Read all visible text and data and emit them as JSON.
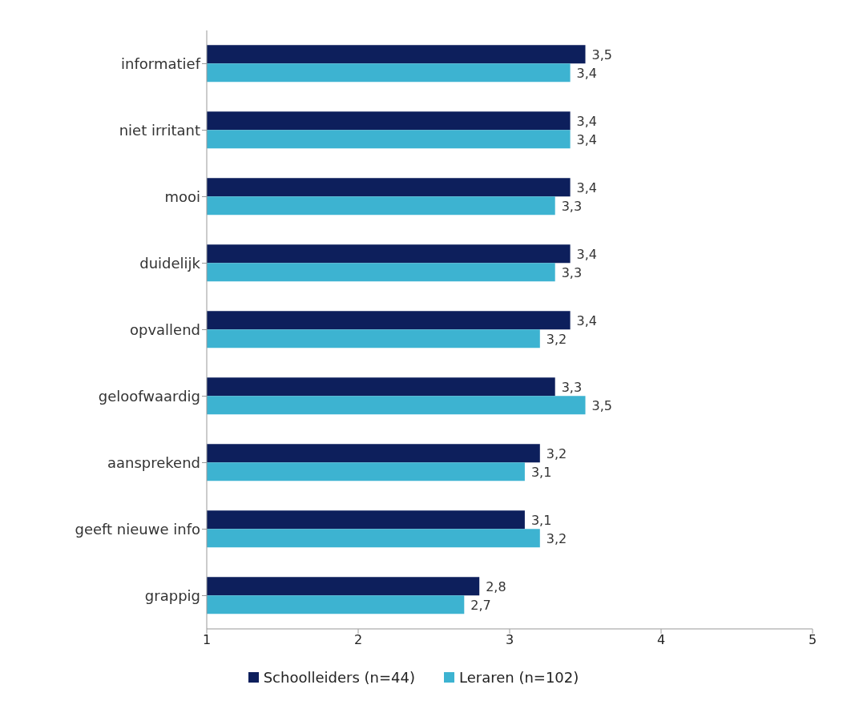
{
  "chart_data": {
    "type": "bar",
    "orientation": "horizontal",
    "categories": [
      "informatief",
      "niet irritant",
      "mooi",
      "duidelijk",
      "opvallend",
      "geloofwaardig",
      "aansprekend",
      "geeft nieuwe info",
      "grappig"
    ],
    "series": [
      {
        "name": "Schoolleiders (n=44)",
        "color": "#0d1f5c",
        "values": [
          3.5,
          3.4,
          3.4,
          3.4,
          3.4,
          3.3,
          3.2,
          3.1,
          2.8
        ],
        "value_labels": [
          "3,5",
          "3,4",
          "3,4",
          "3,4",
          "3,4",
          "3,3",
          "3,2",
          "3,1",
          "2,8"
        ]
      },
      {
        "name": "Leraren (n=102)",
        "color": "#3db3d1",
        "values": [
          3.4,
          3.4,
          3.3,
          3.3,
          3.2,
          3.5,
          3.1,
          3.2,
          2.7
        ],
        "value_labels": [
          "3,4",
          "3,4",
          "3,3",
          "3,3",
          "3,2",
          "3,5",
          "3,1",
          "3,2",
          "2,7"
        ]
      }
    ],
    "xlim": [
      1,
      5
    ],
    "xticks": [
      1,
      2,
      3,
      4,
      5
    ],
    "legend": "bottom"
  }
}
